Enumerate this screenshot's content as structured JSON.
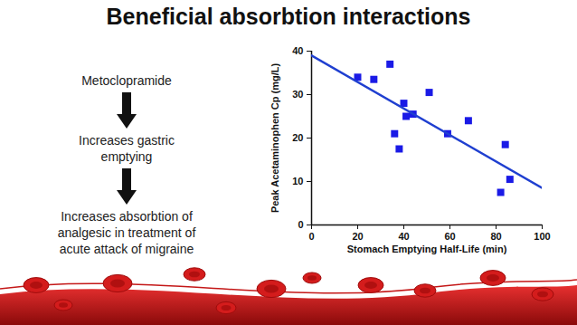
{
  "slide": {
    "title": "Beneficial absorbtion interactions",
    "flow": [
      [
        "Metoclopramide"
      ],
      [
        "Increases gastric",
        "emptying"
      ],
      [
        "Increases absorbtion of",
        "analgesic in treatment of",
        "acute attack of migraine"
      ]
    ]
  },
  "chart_data": {
    "type": "scatter",
    "xlabel": "Stomach Emptying Half-Life (min)",
    "ylabel": "Peak Acetaminophen Cp (mg/L)",
    "xlim": [
      0,
      100
    ],
    "xticks": [
      0,
      20,
      40,
      60,
      80,
      100
    ],
    "ylim": [
      0,
      40
    ],
    "yticks": [
      0,
      10,
      20,
      30,
      40
    ],
    "grid": false,
    "series": [
      {
        "type": "scatter",
        "color": "#1a1ae6",
        "marker": "square",
        "x": [
          20,
          27,
          34,
          36,
          38,
          40,
          41,
          44,
          51,
          59,
          68,
          82,
          84,
          86
        ],
        "values": [
          34,
          33.5,
          37,
          21,
          17.5,
          28,
          25,
          25.5,
          30.5,
          21,
          24,
          7.5,
          18.5,
          10.5
        ]
      },
      {
        "type": "line",
        "color": "#1f3fd0",
        "line_style": "solid",
        "x": [
          0,
          100
        ],
        "values": [
          39,
          8.5
        ]
      }
    ]
  }
}
